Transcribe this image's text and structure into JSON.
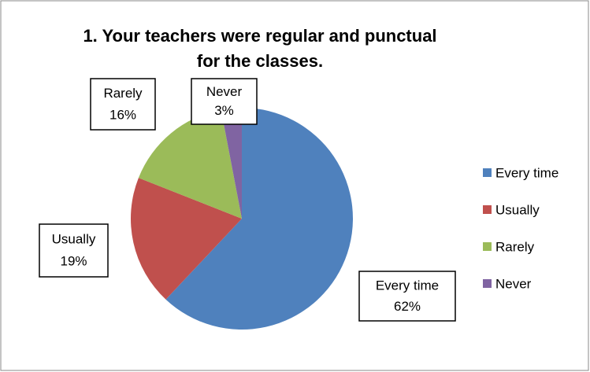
{
  "chart_data": {
    "type": "pie",
    "title": "1. Your teachers were regular and punctual for the classes.",
    "categories": [
      "Every time",
      "Usually",
      "Rarely",
      "Never"
    ],
    "values": [
      62,
      19,
      16,
      3
    ],
    "value_labels": [
      "62%",
      "19%",
      "16%",
      "3%"
    ],
    "colors": [
      "#4f81bd",
      "#c0504d",
      "#9bbb59",
      "#8064a2"
    ],
    "legend": "right"
  }
}
